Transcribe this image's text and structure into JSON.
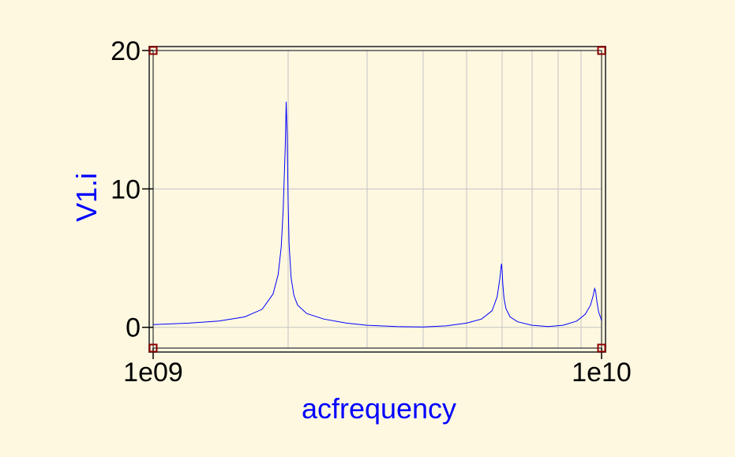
{
  "colors": {
    "background": "#fef8e0",
    "series": "#0000ff",
    "frame": "#555555",
    "grid": "#c4c4c4",
    "marker": "#8b0000",
    "label": "#0000ff"
  },
  "chart_data": {
    "type": "line",
    "title": "",
    "xlabel": "acfrequency",
    "ylabel": "V1.i",
    "xscale": "log",
    "xlim": [
      1000000000.0,
      10000000000.0
    ],
    "ylim": [
      -1.5,
      20
    ],
    "xticks": [
      {
        "value": 1000000000.0,
        "label": "1e09"
      },
      {
        "value": 10000000000.0,
        "label": "1e10"
      }
    ],
    "yticks": [
      {
        "value": 0,
        "label": "0"
      },
      {
        "value": 10,
        "label": "10"
      },
      {
        "value": 20,
        "label": "20"
      }
    ],
    "grid": true,
    "series": [
      {
        "x": [
          1000000000.0,
          1200000000.0,
          1400000000.0,
          1600000000.0,
          1750000000.0,
          1850000000.0,
          1900000000.0,
          1930000000.0,
          1950000000.0,
          1970000000.0,
          1980000000.0,
          1990000000.0,
          2000000000.0,
          2010000000.0,
          2030000000.0,
          2060000000.0,
          2100000000.0,
          2200000000.0,
          2400000000.0,
          2700000000.0,
          3000000000.0,
          3500000000.0,
          4000000000.0,
          4500000000.0,
          5000000000.0,
          5400000000.0,
          5700000000.0,
          5850000000.0,
          5930000000.0,
          5980000000.0,
          6000000000.0,
          6020000000.0,
          6060000000.0,
          6120000000.0,
          6250000000.0,
          6500000000.0,
          7000000000.0,
          7600000000.0,
          8200000000.0,
          8800000000.0,
          9200000000.0,
          9450000000.0,
          9580000000.0,
          9650000000.0,
          9700000000.0,
          9760000000.0,
          9850000000.0,
          9950000000.0,
          10000000000.0
        ],
        "y": [
          0.2,
          0.3,
          0.45,
          0.75,
          1.3,
          2.4,
          3.8,
          5.8,
          8.5,
          13.0,
          16.3,
          14.0,
          9.0,
          6.0,
          3.6,
          2.3,
          1.6,
          1.0,
          0.6,
          0.3,
          0.15,
          0.05,
          0.02,
          0.1,
          0.3,
          0.6,
          1.2,
          2.2,
          3.5,
          4.6,
          4.2,
          3.2,
          2.1,
          1.35,
          0.75,
          0.4,
          0.15,
          0.05,
          0.15,
          0.45,
          0.95,
          1.6,
          2.3,
          2.8,
          2.6,
          1.9,
          1.1,
          0.7,
          0.5
        ]
      }
    ]
  }
}
